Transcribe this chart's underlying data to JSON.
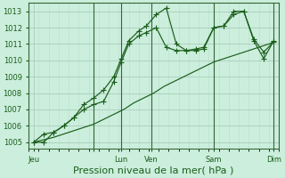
{
  "bg_color": "#cceedd",
  "grid_color_major": "#aaccbb",
  "grid_color_minor": "#bbddcc",
  "line_color": "#1a5e1a",
  "xlabel": "Pression niveau de la mer( hPa )",
  "xlabel_fontsize": 8,
  "tick_fontsize": 6,
  "ylabel_ticks": [
    1005,
    1006,
    1007,
    1008,
    1009,
    1010,
    1011,
    1012,
    1013
  ],
  "ylim": [
    1004.6,
    1013.5
  ],
  "xlim": [
    0,
    100
  ],
  "xtick_positions": [
    2,
    26,
    37,
    49,
    74,
    98
  ],
  "xtick_labels": [
    "Jeu",
    "",
    "Lun",
    "Ven",
    "Sam",
    "Dim"
  ],
  "series1_x": [
    2,
    6,
    10,
    14,
    18,
    22,
    26,
    30,
    34,
    38,
    42,
    46,
    50,
    54,
    58,
    62,
    66,
    70,
    74,
    78,
    82,
    86,
    90,
    94,
    98
  ],
  "series1_y": [
    1005.0,
    1005.15,
    1005.3,
    1005.5,
    1005.7,
    1005.9,
    1006.1,
    1006.4,
    1006.7,
    1007.0,
    1007.4,
    1007.7,
    1008.0,
    1008.4,
    1008.7,
    1009.0,
    1009.3,
    1009.6,
    1009.9,
    1010.1,
    1010.3,
    1010.5,
    1010.7,
    1010.9,
    1011.1
  ],
  "series2_x": [
    2,
    6,
    10,
    14,
    18,
    22,
    26,
    30,
    34,
    37,
    40,
    44,
    47,
    51,
    55,
    59,
    63,
    67,
    70,
    74,
    78,
    82,
    86,
    90,
    94,
    98
  ],
  "series2_y": [
    1005.0,
    1005.5,
    1005.6,
    1006.0,
    1006.5,
    1007.3,
    1007.7,
    1008.2,
    1009.0,
    1010.1,
    1011.2,
    1011.8,
    1012.1,
    1012.8,
    1013.2,
    1011.0,
    1010.6,
    1010.6,
    1010.7,
    1012.0,
    1012.1,
    1013.0,
    1013.0,
    1011.2,
    1010.1,
    1011.2
  ],
  "series3_x": [
    2,
    6,
    10,
    14,
    18,
    22,
    26,
    30,
    34,
    37,
    40,
    44,
    47,
    51,
    55,
    59,
    63,
    67,
    70,
    74,
    78,
    82,
    86,
    90,
    94,
    98
  ],
  "series3_y": [
    1005.0,
    1005.0,
    1005.6,
    1006.0,
    1006.5,
    1007.0,
    1007.3,
    1007.5,
    1008.7,
    1009.9,
    1011.0,
    1011.5,
    1011.7,
    1012.0,
    1010.8,
    1010.6,
    1010.6,
    1010.7,
    1010.8,
    1012.0,
    1012.1,
    1012.8,
    1013.0,
    1011.3,
    1010.5,
    1011.15
  ],
  "vline_positions": [
    26,
    37,
    49,
    74,
    98
  ],
  "vline_color": "#336633"
}
